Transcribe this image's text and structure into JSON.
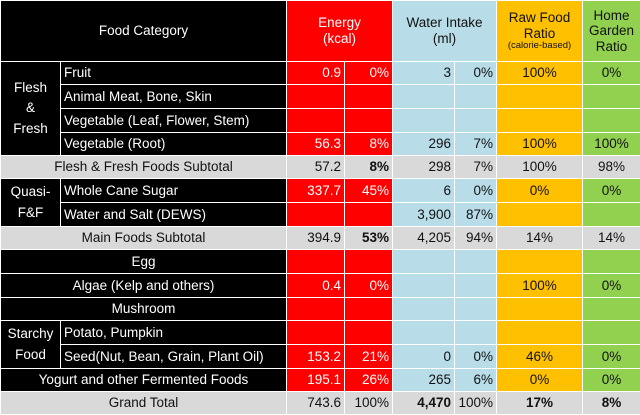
{
  "header": {
    "category": "Food Category",
    "energy": [
      "Energy",
      "(kcal)"
    ],
    "water": [
      "Water Intake",
      "(ml)"
    ],
    "raw": [
      "Raw Food",
      "Ratio"
    ],
    "raw_note": "(calorie-based)",
    "home": [
      "Home",
      "Garden",
      "Ratio"
    ]
  },
  "groups": {
    "flesh": [
      "Flesh",
      "&",
      "Fresh"
    ],
    "quasi": [
      "Quasi-",
      "F&F"
    ],
    "starchy": [
      "Starchy",
      "Food"
    ]
  },
  "rows": {
    "fruit": {
      "name": "Fruit",
      "e": "0.9",
      "ep": "0%",
      "w": "3",
      "wp": "0%",
      "raw": "100%",
      "home": "0%"
    },
    "animal": {
      "name": "Animal Meat, Bone, Skin"
    },
    "vegleaf": {
      "name": "Vegetable (Leaf, Flower, Stem)"
    },
    "vegroot": {
      "name": "Vegetable (Root)",
      "e": "56.3",
      "ep": "8%",
      "w": "296",
      "wp": "7%",
      "raw": "100%",
      "home": "100%"
    },
    "fleshsub": {
      "name": "Flesh & Fresh Foods Subtotal",
      "e": "57.2",
      "ep": "8%",
      "w": "298",
      "wp": "7%",
      "raw": "100%",
      "home": "98%"
    },
    "sugar": {
      "name": "Whole Cane Sugar",
      "e": "337.7",
      "ep": "45%",
      "w": "6",
      "wp": "0%",
      "raw": "0%",
      "home": "0%"
    },
    "salt": {
      "name": "Water and Salt (DEWS)",
      "w": "3,900",
      "wp": "87%"
    },
    "mainsub": {
      "name": "Main Foods Subtotal",
      "e": "394.9",
      "ep": "53%",
      "w": "4,205",
      "wp": "94%",
      "raw": "14%",
      "home": "14%"
    },
    "egg": {
      "name": "Egg"
    },
    "algae": {
      "name": "Algae (Kelp and others)",
      "e": "0.4",
      "ep": "0%",
      "raw": "100%",
      "home": "0%"
    },
    "mushroom": {
      "name": "Mushroom"
    },
    "potato": {
      "name": "Potato, Pumpkin"
    },
    "seed": {
      "name": "Seed(Nut, Bean, Grain, Plant Oil)",
      "e": "153.2",
      "ep": "21%",
      "w": "0",
      "wp": "0%",
      "raw": "46%",
      "home": "0%"
    },
    "yogurt": {
      "name": "Yogurt and other Fermented Foods",
      "e": "195.1",
      "ep": "26%",
      "w": "265",
      "wp": "6%",
      "raw": "0%",
      "home": "0%"
    },
    "grand": {
      "name": "Grand Total",
      "e": "743.6",
      "ep": "100%",
      "w": "4,470",
      "wp": "100%",
      "raw": "17%",
      "home": "8%"
    }
  }
}
